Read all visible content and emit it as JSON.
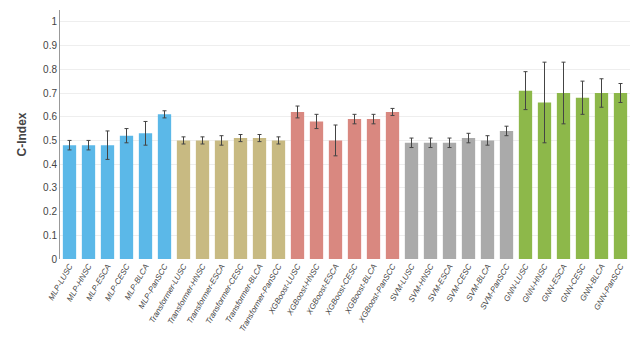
{
  "chart_data": {
    "type": "bar",
    "ylabel": "C-Index",
    "categories": [
      "MLP-LUSC",
      "MLP-HNSC",
      "MLP-ESCA",
      "MLP-CESC",
      "MLP-BLCA",
      "MLP-PanSCC",
      "Transformer-LUSC",
      "Transformer-HNSC",
      "Transformer-ESCA",
      "Transformer-CESC",
      "Transformer-BLCA",
      "Transformer-PanSCC",
      "XGBoost-LUSC",
      "XGBoost-HNSC",
      "XGBoost-ESCA",
      "XGBoost-CESC",
      "XGBoost-BLCA",
      "XGBoost-PanSCC",
      "SVM-LUSC",
      "SVM-HNSC",
      "SVM-ESCA",
      "SVM-CESC",
      "SVM-BLCA",
      "SVM-PanSCC",
      "GNN-LUSC",
      "GNN-HNSC",
      "GNN-ESCA",
      "GNN-CESC",
      "GNN-BLCA",
      "GNN-PanSCC"
    ],
    "values": [
      0.48,
      0.48,
      0.48,
      0.52,
      0.53,
      0.61,
      0.5,
      0.5,
      0.5,
      0.51,
      0.51,
      0.5,
      0.62,
      0.58,
      0.5,
      0.59,
      0.59,
      0.62,
      0.49,
      0.49,
      0.49,
      0.51,
      0.5,
      0.54,
      0.71,
      0.66,
      0.7,
      0.68,
      0.7,
      0.7
    ],
    "errors": [
      0.02,
      0.02,
      0.06,
      0.03,
      0.05,
      0.015,
      0.015,
      0.015,
      0.02,
      0.015,
      0.015,
      0.015,
      0.025,
      0.03,
      0.065,
      0.02,
      0.02,
      0.015,
      0.02,
      0.02,
      0.02,
      0.02,
      0.02,
      0.02,
      0.08,
      0.17,
      0.13,
      0.07,
      0.06,
      0.04
    ],
    "colors": [
      "#5BB8E8",
      "#5BB8E8",
      "#5BB8E8",
      "#5BB8E8",
      "#5BB8E8",
      "#5BB8E8",
      "#C8BA82",
      "#C8BA82",
      "#C8BA82",
      "#C8BA82",
      "#C8BA82",
      "#C8BA82",
      "#D98880",
      "#D98880",
      "#D98880",
      "#D98880",
      "#D98880",
      "#D98880",
      "#AAAAAA",
      "#AAAAAA",
      "#AAAAAA",
      "#AAAAAA",
      "#AAAAAA",
      "#AAAAAA",
      "#8DB84A",
      "#8DB84A",
      "#8DB84A",
      "#8DB84A",
      "#8DB84A",
      "#8DB84A"
    ],
    "ylim": [
      0,
      1.05
    ],
    "yticks": [
      0,
      0.1,
      0.2,
      0.3,
      0.4,
      0.5,
      0.6,
      0.7,
      0.8,
      0.9,
      1
    ],
    "grid": true
  }
}
